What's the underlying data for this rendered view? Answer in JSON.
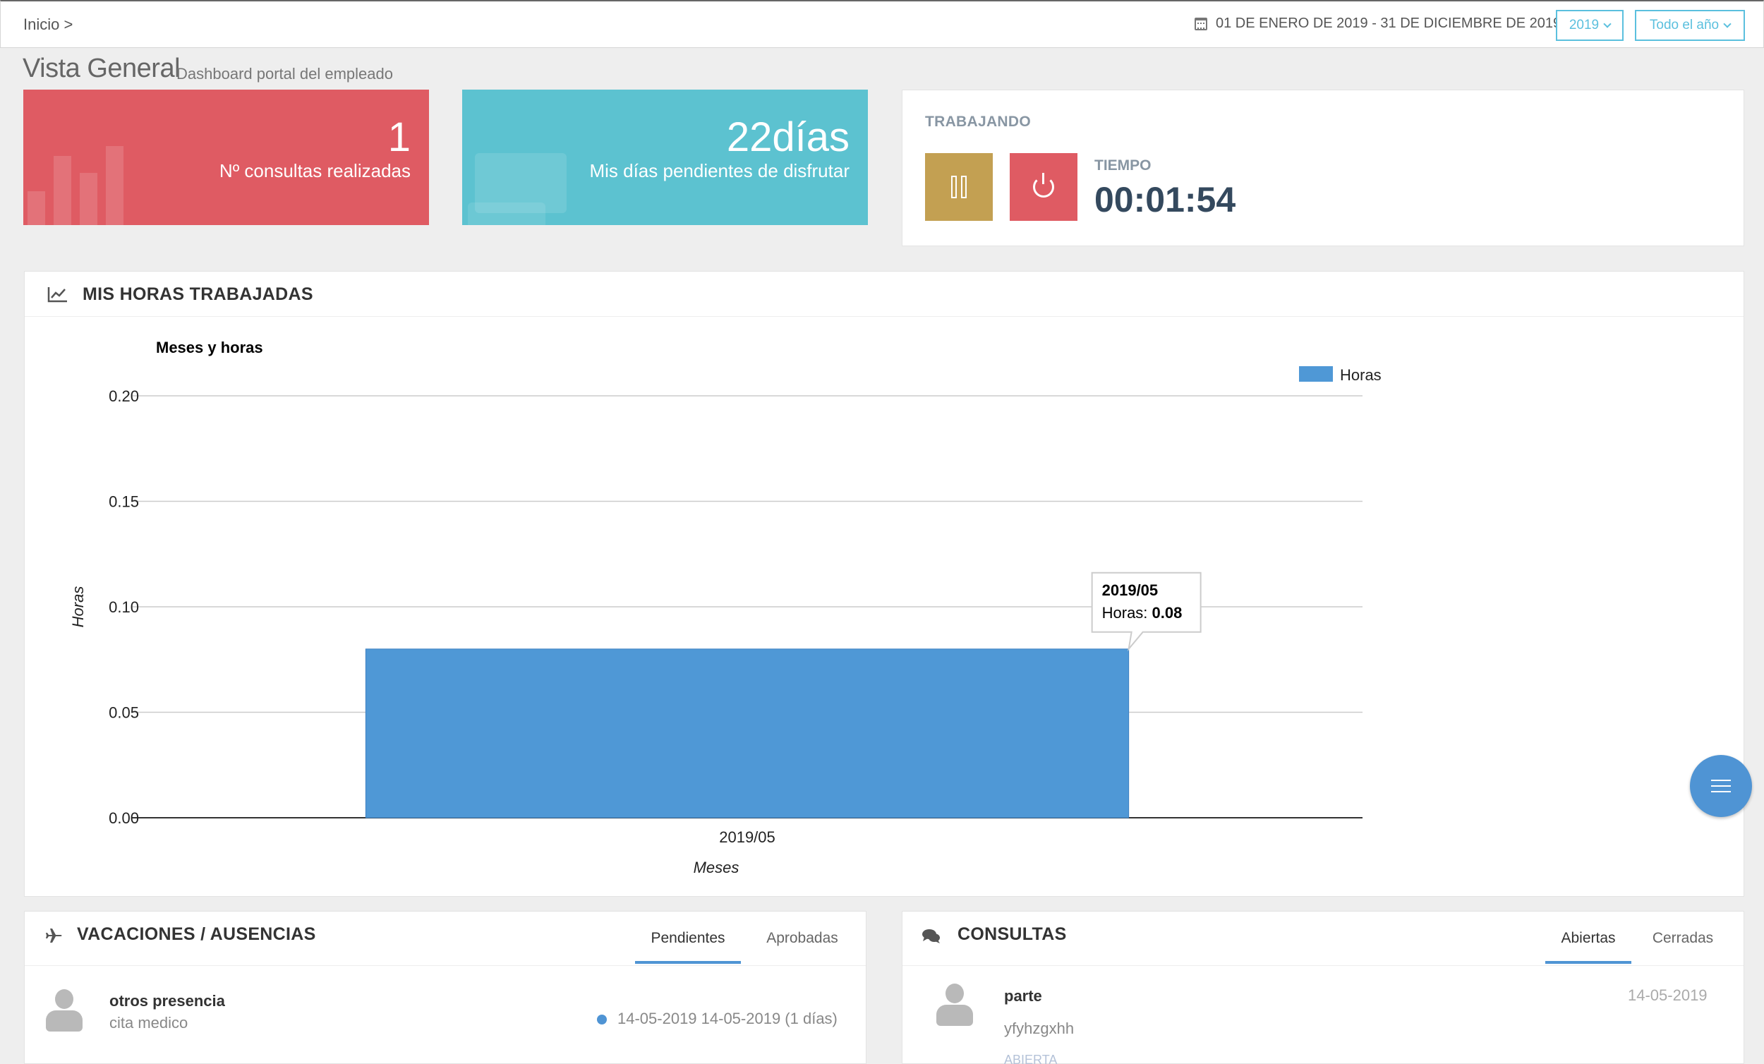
{
  "breadcrumb": {
    "home": "Inicio >"
  },
  "header": {
    "date_range": "01 DE ENERO DE 2019 - 31 DE DICIEMBRE DE 2019",
    "year_select": "2019",
    "period_select": "Todo el año"
  },
  "page": {
    "title": "Vista General",
    "subtitle": "Dashboard portal del empleado"
  },
  "stats": [
    {
      "value": "1",
      "label": "Nº consultas realizadas",
      "color": "#df5b63"
    },
    {
      "value": "22días",
      "label": "Mis días pendientes de disfrutar",
      "color": "#5cc2d0"
    }
  ],
  "working": {
    "title": "TRABAJANDO",
    "time_label": "TIEMPO",
    "time_value": "00:01:54",
    "pause_color": "#c3a052",
    "stop_color": "#df5b63"
  },
  "hours_panel": {
    "title": "MIS HORAS TRABAJADAS"
  },
  "chart_data": {
    "type": "bar",
    "title": "Meses y horas",
    "categories": [
      "2019/05"
    ],
    "series": [
      {
        "name": "Horas",
        "values": [
          0.08
        ],
        "color": "#4f98d6"
      }
    ],
    "xlabel": "Meses",
    "ylabel": "Horas",
    "ylim": [
      0,
      0.2
    ],
    "yticks": [
      "0.20",
      "0.15",
      "0.10",
      "0.05",
      "0.00"
    ],
    "legend_position": "top-right",
    "grid": true,
    "tooltip": {
      "title": "2019/05",
      "label": "Horas:",
      "value": "0.08"
    }
  },
  "vacations": {
    "title": "VACACIONES / AUSENCIAS",
    "tabs": [
      "Pendientes",
      "Aprobadas"
    ],
    "items": [
      {
        "name": "otros presencia",
        "reason": "cita medico",
        "dates": "14-05-2019 14-05-2019 (1 días)"
      }
    ]
  },
  "consultas": {
    "title": "CONSULTAS",
    "tabs": [
      "Abiertas",
      "Cerradas"
    ],
    "items": [
      {
        "subject": "parte",
        "text": "yfyhzgxhh",
        "date": "14-05-2019",
        "status": "ABIERTA"
      }
    ]
  }
}
